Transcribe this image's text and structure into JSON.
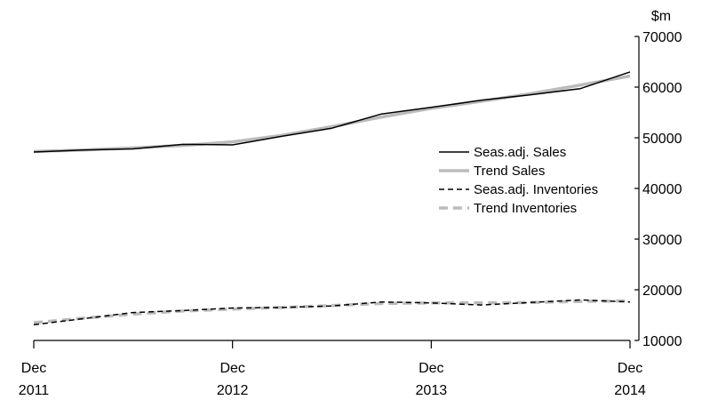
{
  "chart_data": {
    "type": "line",
    "title": "",
    "xlabel": "",
    "ylabel": "$m",
    "ylim": [
      10000,
      70000
    ],
    "yticks": [
      10000,
      20000,
      30000,
      40000,
      50000,
      60000,
      70000
    ],
    "y_axis_side": "right",
    "grid": false,
    "legend_position": "right-center",
    "x_ticks": [
      {
        "month": "Dec",
        "year": "2011"
      },
      {
        "month": "Dec",
        "year": "2012"
      },
      {
        "month": "Dec",
        "year": "2013"
      },
      {
        "month": "Dec",
        "year": "2014"
      }
    ],
    "x": [
      "2011-12",
      "2012-03",
      "2012-06",
      "2012-09",
      "2012-12",
      "2013-03",
      "2013-06",
      "2013-09",
      "2013-12",
      "2014-03",
      "2014-06",
      "2014-09",
      "2014-12"
    ],
    "series": [
      {
        "name": "Seas.adj. Sales",
        "color": "#000000",
        "style": "solid",
        "values": [
          47200,
          47600,
          47800,
          48700,
          48600,
          50300,
          51900,
          54700,
          56000,
          57400,
          58500,
          59700,
          63000
        ]
      },
      {
        "name": "Trend Sales",
        "color": "#bbbbbb",
        "style": "solid",
        "values": [
          47300,
          47600,
          48000,
          48500,
          49200,
          50500,
          52200,
          54100,
          55800,
          57200,
          58700,
          60400,
          62200
        ]
      },
      {
        "name": "Seas.adj. Inventories",
        "color": "#000000",
        "style": "dashed",
        "values": [
          13100,
          14300,
          15500,
          15900,
          16400,
          16500,
          16800,
          17600,
          17400,
          17000,
          17500,
          18000,
          17600
        ]
      },
      {
        "name": "Trend Inventories",
        "color": "#bbbbbb",
        "style": "dashed",
        "values": [
          13500,
          14400,
          15200,
          15800,
          16200,
          16500,
          16900,
          17300,
          17400,
          17400,
          17500,
          17700,
          17800
        ]
      }
    ]
  }
}
